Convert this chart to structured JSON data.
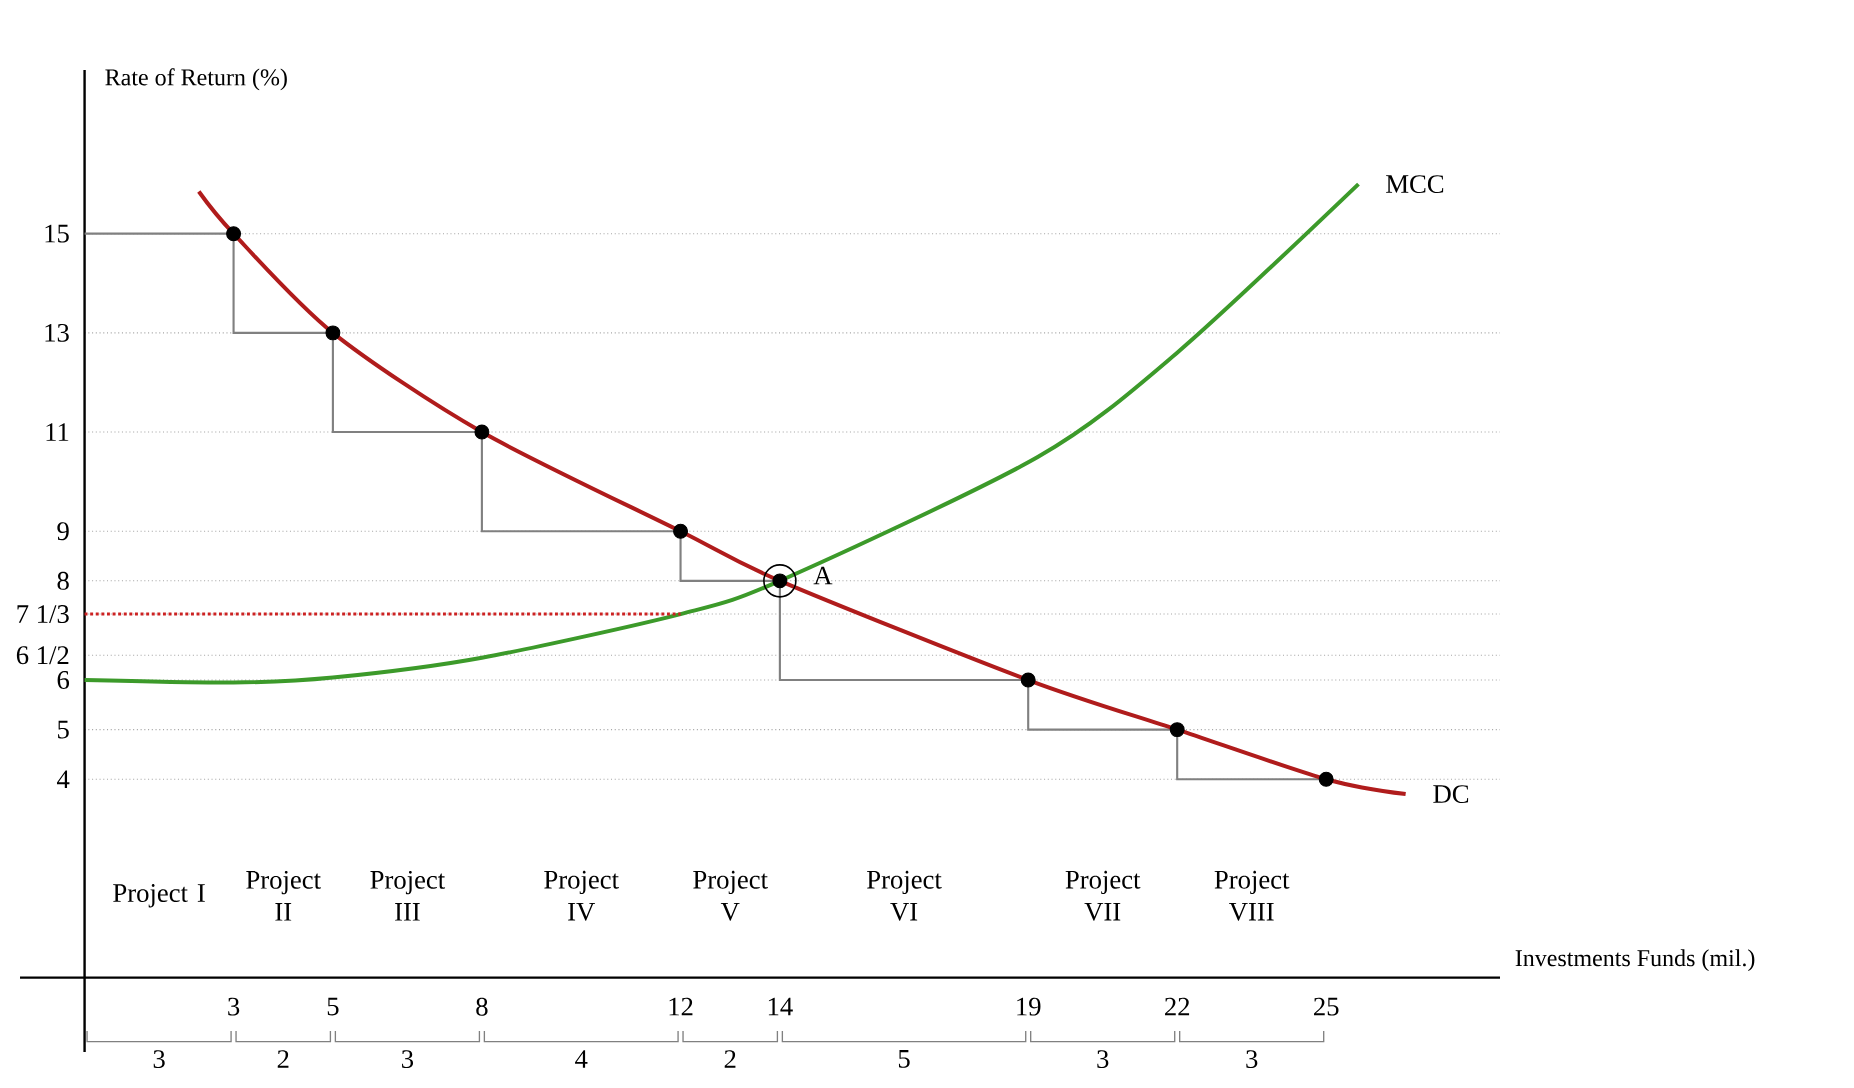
{
  "chart_data": {
    "type": "line",
    "xlabel": "Investments Funds (mil.)",
    "ylabel": "Rate of Return (%)",
    "xlim": [
      -1.3,
      28.5
    ],
    "ylim": [
      -1.5,
      18.3
    ],
    "xticks": [
      3,
      5,
      8,
      12,
      14,
      19,
      22,
      25
    ],
    "yticks": [
      4,
      5,
      6,
      {
        "value": 6.5,
        "label": "6 1/2"
      },
      {
        "value": 7.33,
        "label": "7 1/3"
      },
      8,
      9,
      11,
      13,
      15
    ],
    "grid": "y",
    "legend": "right",
    "series": [
      {
        "name": "DC",
        "color": "#b01c1c",
        "line_style": "solid",
        "marker": "none",
        "x": [
          2.3,
          3,
          5,
          8,
          12,
          14,
          19,
          22,
          25,
          26.6
        ],
        "values": [
          15.85,
          15,
          13,
          11,
          9,
          8,
          6,
          5,
          4,
          3.7
        ]
      },
      {
        "name": "MCC",
        "color": "#3c9a2a",
        "line_style": "solid",
        "marker": "none",
        "x": [
          0,
          3,
          5,
          8,
          12,
          14,
          19.2,
          22,
          25.65
        ],
        "values": [
          6,
          5.95,
          6.05,
          6.45,
          7.33,
          8,
          10.5,
          12.6,
          16
        ]
      },
      {
        "type": "scatter",
        "color": "#000000",
        "marker": "circle",
        "x": [
          3,
          5,
          8,
          12,
          14,
          19,
          22,
          25
        ],
        "values": [
          15,
          13,
          11,
          9,
          8,
          6,
          5,
          4
        ]
      },
      {
        "type": "step",
        "color": "#808080",
        "line_style": "solid",
        "marker": "none",
        "x": [
          0,
          3,
          5,
          8,
          12,
          14,
          19,
          22,
          25
        ],
        "values": [
          15,
          15,
          13,
          11,
          9,
          8,
          6,
          5,
          4
        ]
      },
      {
        "type": "line",
        "color": "#cc2222",
        "line_style": "dotted",
        "marker": "none",
        "x": [
          0,
          12
        ],
        "values": [
          7.33,
          7.33
        ]
      }
    ],
    "annotations": [
      {
        "text": "A",
        "x": 14,
        "y": 8
      },
      "Project I",
      "Project II",
      "Project III",
      "Project IV",
      "Project V",
      "Project VI",
      "Project VII",
      "Project VIII",
      "3",
      "2",
      "3",
      "4",
      "2",
      "5",
      "3",
      "3"
    ]
  }
}
